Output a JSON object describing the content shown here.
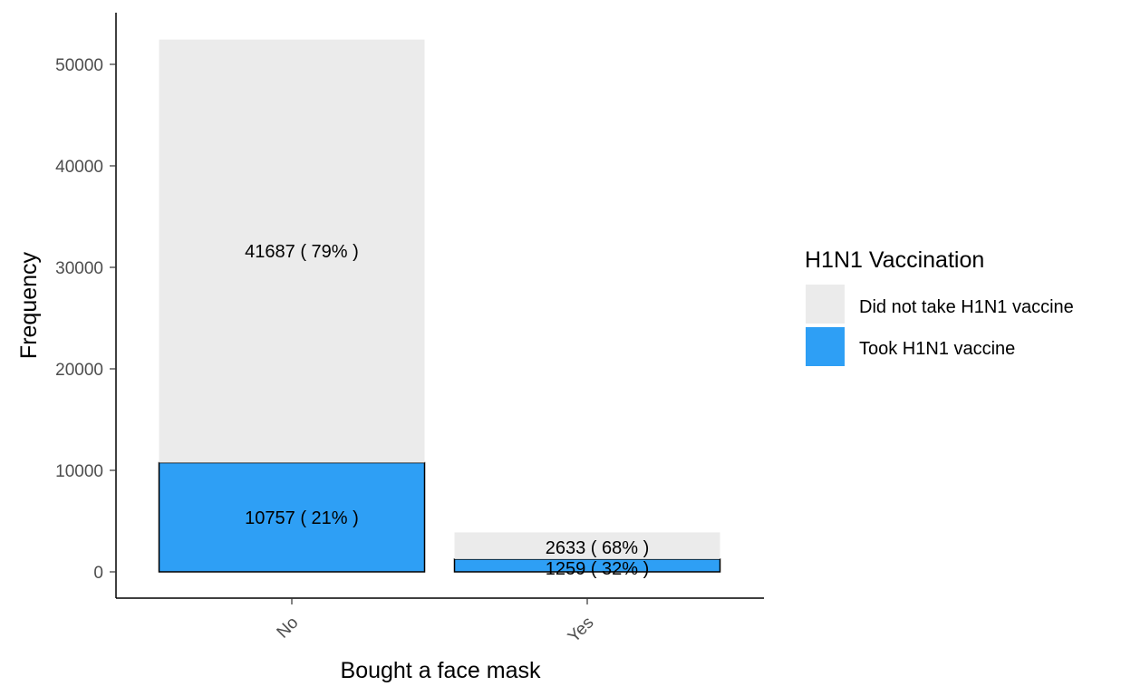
{
  "chart_data": {
    "type": "bar",
    "stacked": true,
    "categories": [
      "No",
      "Yes"
    ],
    "series": [
      {
        "name": "Took H1N1 vaccine",
        "values": [
          10757,
          1259
        ],
        "percent": [
          "21%",
          "32%"
        ],
        "color": "#2E9FF5"
      },
      {
        "name": "Did not take H1N1 vaccine",
        "values": [
          41687,
          2633
        ],
        "percent": [
          "79%",
          "68%"
        ],
        "color": "#EBEBEB"
      }
    ],
    "labels": {
      "No": [
        "10757 ( 21% )",
        "41687 ( 79% )"
      ],
      "Yes": [
        "1259 ( 32% )",
        "2633 ( 68% )"
      ]
    },
    "xlabel": "Bought a face mask",
    "ylabel": "Frequency",
    "ylim": [
      0,
      55000
    ],
    "yticks": [
      0,
      10000,
      20000,
      30000,
      40000,
      50000
    ],
    "grid": false,
    "legend": {
      "title": "H1N1 Vaccination",
      "placement": "right",
      "entries": [
        "Did not take H1N1 vaccine",
        "Took H1N1 vaccine"
      ]
    }
  }
}
